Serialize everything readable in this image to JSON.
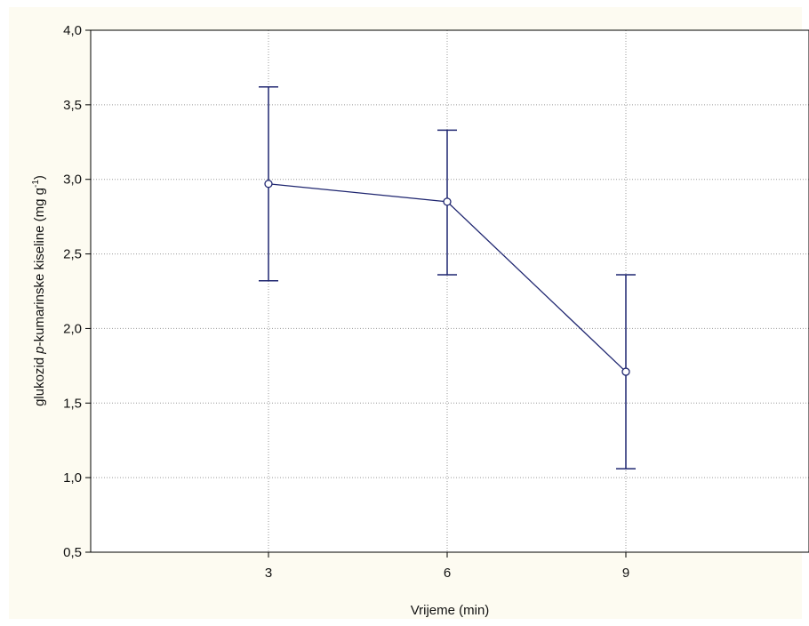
{
  "chart_data": {
    "type": "line",
    "xlabel": "Vrijeme (min)",
    "ylabel": {
      "prefix": "glukozid ",
      "italic": "p",
      "middle": "-kumarinske kiseline (mg g",
      "sup": "-1",
      "suffix": ")"
    },
    "x_categories": [
      "3",
      "6",
      "9"
    ],
    "y_ticks": [
      "0,5",
      "1,0",
      "1,5",
      "2,0",
      "2,5",
      "3,0",
      "3,5",
      "4,0"
    ],
    "ylim": [
      0.5,
      4.0
    ],
    "grid": true,
    "series": [
      {
        "x": [
          "3",
          "6",
          "9"
        ],
        "y": [
          2.97,
          2.85,
          1.71
        ],
        "y_upper": [
          3.62,
          3.33,
          2.36
        ],
        "y_lower": [
          2.32,
          2.36,
          1.06
        ],
        "color": "#1f2670"
      }
    ]
  },
  "colors": {
    "background": "#fdfbf1",
    "plot_area": "#ffffff",
    "grid": "#9a9a9a",
    "series": "#1f2670"
  }
}
